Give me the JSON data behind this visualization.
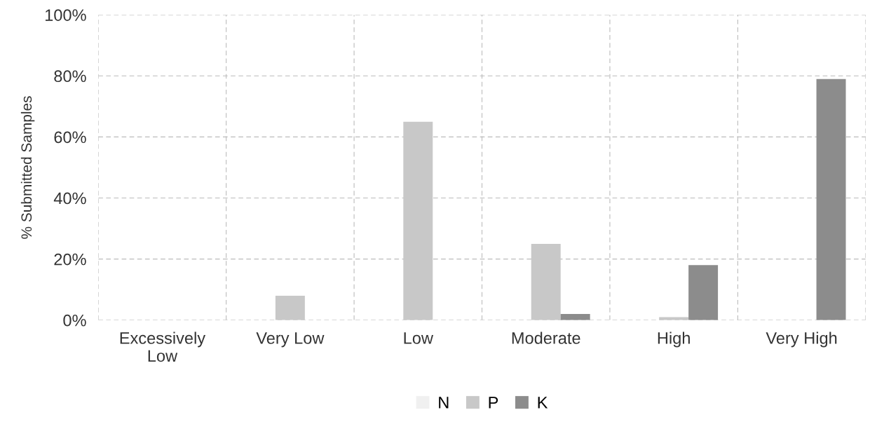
{
  "chart_data": {
    "type": "bar",
    "ylabel": "% Submitted Samples",
    "categories": [
      "Excessively\nLow",
      "Very Low",
      "Low",
      "Moderate",
      "High",
      "Very High"
    ],
    "series": [
      {
        "name": "N",
        "color": "#f0f0f0",
        "values": [
          0,
          0,
          0,
          0,
          0,
          0
        ]
      },
      {
        "name": "P",
        "color": "#c8c8c8",
        "values": [
          0,
          8,
          65,
          25,
          1,
          0
        ]
      },
      {
        "name": "K",
        "color": "#8c8c8c",
        "values": [
          0,
          0,
          0,
          2,
          18,
          79
        ]
      }
    ],
    "ylim": [
      0,
      100
    ],
    "yticks": [
      {
        "value": 0,
        "label": "0%"
      },
      {
        "value": 20,
        "label": "20%"
      },
      {
        "value": 40,
        "label": "40%"
      },
      {
        "value": 60,
        "label": "60%"
      },
      {
        "value": 80,
        "label": "80%"
      },
      {
        "value": 100,
        "label": "100%"
      }
    ],
    "grid": true,
    "legend": "bottom"
  }
}
